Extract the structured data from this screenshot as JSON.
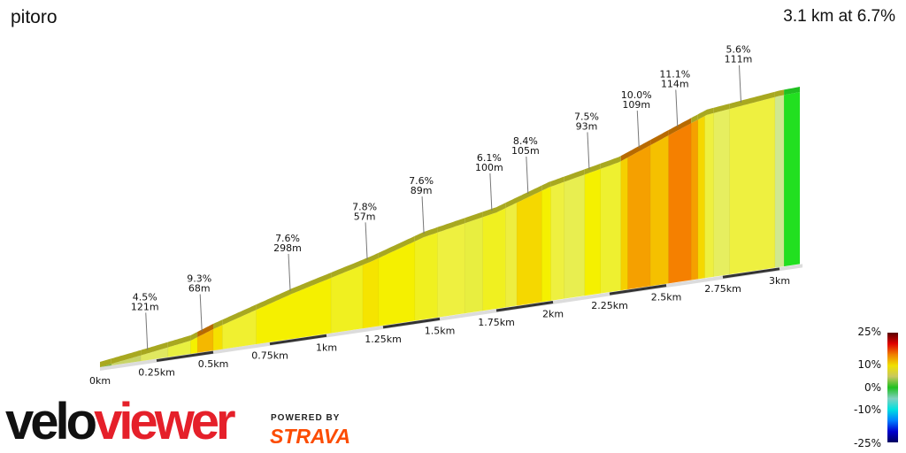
{
  "header": {
    "title": "pitoro",
    "summary": "3.1 km at 6.7%"
  },
  "chart_data": {
    "type": "area",
    "title": "pitoro",
    "subtitle": "3.1 km at 6.7%",
    "xlabel": "",
    "ylabel": "",
    "x_unit": "km",
    "xlim": [
      0,
      3.09
    ],
    "profile": {
      "km": [
        0,
        0.18,
        0.4,
        0.5,
        0.85,
        1.2,
        1.43,
        1.75,
        1.98,
        2.29,
        2.53,
        2.68,
        3.0,
        3.09
      ],
      "elevation_m": [
        0,
        7,
        16,
        26,
        55,
        80,
        100,
        117,
        138,
        156,
        182,
        198,
        208,
        209
      ]
    },
    "x_ticks": [
      {
        "km": 0,
        "label": "0km"
      },
      {
        "km": 0.25,
        "label": "0.25km"
      },
      {
        "km": 0.5,
        "label": "0.5km"
      },
      {
        "km": 0.75,
        "label": "0.75km"
      },
      {
        "km": 1,
        "label": "1km"
      },
      {
        "km": 1.25,
        "label": "1.25km"
      },
      {
        "km": 1.5,
        "label": "1.5km"
      },
      {
        "km": 1.75,
        "label": "1.75km"
      },
      {
        "km": 2,
        "label": "2km"
      },
      {
        "km": 2.25,
        "label": "2.25km"
      },
      {
        "km": 2.5,
        "label": "2.5km"
      },
      {
        "km": 2.75,
        "label": "2.75km"
      },
      {
        "km": 3,
        "label": "3km"
      }
    ],
    "gradient_bands": [
      {
        "from": 0,
        "to": 0.05,
        "color": "#7cb342"
      },
      {
        "from": 0.05,
        "to": 0.18,
        "color": "#c8d468"
      },
      {
        "from": 0.18,
        "to": 0.3,
        "color": "#e0e860"
      },
      {
        "from": 0.3,
        "to": 0.4,
        "color": "#e8f040"
      },
      {
        "from": 0.4,
        "to": 0.43,
        "color": "#f5f000"
      },
      {
        "from": 0.43,
        "to": 0.5,
        "color": "#f4b800"
      },
      {
        "from": 0.5,
        "to": 0.54,
        "color": "#f5e000"
      },
      {
        "from": 0.54,
        "to": 0.69,
        "color": "#f0f030"
      },
      {
        "from": 0.69,
        "to": 1.02,
        "color": "#f5f000"
      },
      {
        "from": 1.02,
        "to": 1.16,
        "color": "#f0f020"
      },
      {
        "from": 1.16,
        "to": 1.23,
        "color": "#f5e400"
      },
      {
        "from": 1.23,
        "to": 1.39,
        "color": "#f5f000"
      },
      {
        "from": 1.39,
        "to": 1.49,
        "color": "#f0f020"
      },
      {
        "from": 1.49,
        "to": 1.61,
        "color": "#eef040"
      },
      {
        "from": 1.61,
        "to": 1.69,
        "color": "#e8ee40"
      },
      {
        "from": 1.69,
        "to": 1.79,
        "color": "#f0f020"
      },
      {
        "from": 1.79,
        "to": 1.84,
        "color": "#eeee40"
      },
      {
        "from": 1.84,
        "to": 1.95,
        "color": "#f5d800"
      },
      {
        "from": 1.95,
        "to": 1.99,
        "color": "#f5f000"
      },
      {
        "from": 1.99,
        "to": 2.05,
        "color": "#eef040"
      },
      {
        "from": 2.05,
        "to": 2.14,
        "color": "#e8ee50"
      },
      {
        "from": 2.14,
        "to": 2.21,
        "color": "#f5f000"
      },
      {
        "from": 2.21,
        "to": 2.3,
        "color": "#eef030"
      },
      {
        "from": 2.3,
        "to": 2.33,
        "color": "#f5d000"
      },
      {
        "from": 2.33,
        "to": 2.43,
        "color": "#f5a000"
      },
      {
        "from": 2.43,
        "to": 2.51,
        "color": "#f5c000"
      },
      {
        "from": 2.51,
        "to": 2.61,
        "color": "#f58000"
      },
      {
        "from": 2.61,
        "to": 2.64,
        "color": "#f5a000"
      },
      {
        "from": 2.64,
        "to": 2.67,
        "color": "#f5d800"
      },
      {
        "from": 2.67,
        "to": 2.71,
        "color": "#eef040"
      },
      {
        "from": 2.71,
        "to": 2.78,
        "color": "#e6ee60"
      },
      {
        "from": 2.78,
        "to": 2.98,
        "color": "#eef040"
      },
      {
        "from": 2.98,
        "to": 3.02,
        "color": "#d0e890"
      },
      {
        "from": 3.02,
        "to": 3.09,
        "color": "#22e020"
      }
    ],
    "annotations": [
      {
        "km": 0.21,
        "grade": "4.5%",
        "length": "121m"
      },
      {
        "km": 0.45,
        "grade": "9.3%",
        "length": "68m"
      },
      {
        "km": 0.84,
        "grade": "7.6%",
        "length": "298m"
      },
      {
        "km": 1.18,
        "grade": "7.8%",
        "length": "57m"
      },
      {
        "km": 1.43,
        "grade": "7.6%",
        "length": "89m"
      },
      {
        "km": 1.73,
        "grade": "6.1%",
        "length": "100m"
      },
      {
        "km": 1.89,
        "grade": "8.4%",
        "length": "105m"
      },
      {
        "km": 2.16,
        "grade": "7.5%",
        "length": "93m"
      },
      {
        "km": 2.38,
        "grade": "10.0%",
        "length": "109m"
      },
      {
        "km": 2.55,
        "grade": "11.1%",
        "length": "114m"
      },
      {
        "km": 2.83,
        "grade": "5.6%",
        "length": "111m"
      }
    ],
    "legend": {
      "labels": [
        "25%",
        "10%",
        "0%",
        "-10%",
        "-25%"
      ],
      "colors": [
        "#5a0000",
        "#e00000",
        "#f08000",
        "#f0e000",
        "#c8c860",
        "#20c020",
        "#80d0c0",
        "#00e0e0",
        "#0080ff",
        "#0000d0",
        "#000060"
      ]
    }
  },
  "branding": {
    "logo_velo": "velo",
    "logo_viewer": "viewer",
    "powered_by": "POWERED BY",
    "strava": "STRAVA",
    "viewer_color": "#e5202a",
    "strava_color": "#fc4c02"
  }
}
